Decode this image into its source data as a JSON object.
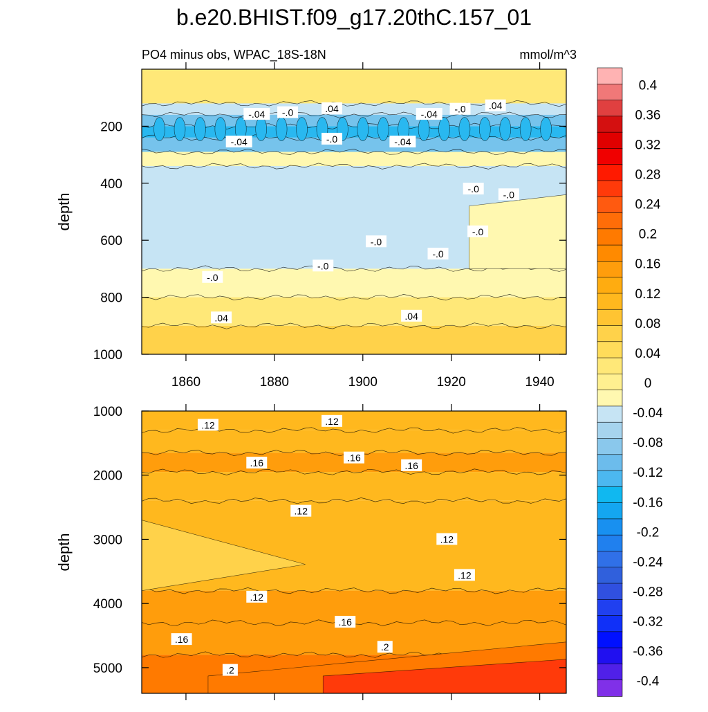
{
  "chart_data": {
    "type": "contour",
    "title": "b.e20.BHIST.f09_g17.20thC.157_01",
    "subtitle_left": "PO4 minus obs, WPAC_18S-18N",
    "subtitle_right": "mmol/m^3",
    "xlabel": "",
    "xlim": [
      1850,
      1946
    ],
    "x_ticks": [
      1860,
      1880,
      1900,
      1920,
      1940
    ],
    "x_tick_labels": [
      "1860",
      "1880",
      "1900",
      "1920",
      "1940"
    ],
    "colors": {
      "deep_blue_core": "#29b8f0",
      "mid_blue": "#76c3ec",
      "light_blue": "#c6e4f4",
      "pale_yellow": "#fff8b0",
      "yellow": "#ffe878",
      "gold": "#ffd24a",
      "light_orange": "#ffb81e",
      "orange": "#ff9d0c",
      "dark_orange": "#ff7a00",
      "red_orange": "#ff3a0a"
    },
    "panels": [
      {
        "name": "upper",
        "ylabel": "depth",
        "ylim": [
          1000,
          0
        ],
        "y_ticks": [
          200,
          400,
          600,
          800,
          1000
        ],
        "y_tick_labels": [
          "200",
          "400",
          "600",
          "800",
          "1000"
        ],
        "bands": [
          {
            "from": 0,
            "to": 120,
            "level": 0.02
          },
          {
            "from": 120,
            "to": 160,
            "level": -0.02
          },
          {
            "from": 160,
            "to": 200,
            "level": -0.06
          },
          {
            "from": 200,
            "to": 240,
            "level": -0.08
          },
          {
            "from": 240,
            "to": 290,
            "level": -0.04
          },
          {
            "from": 290,
            "to": 340,
            "level": 0.01
          },
          {
            "from": 340,
            "to": 700,
            "level": -0.02
          },
          {
            "from": 700,
            "to": 800,
            "level": 0.01
          },
          {
            "from": 800,
            "to": 900,
            "level": 0.03
          },
          {
            "from": 900,
            "to": 1000,
            "level": 0.05
          }
        ],
        "contour_labels": [
          {
            "text": "-.04",
            "x": 1876,
            "y": 158
          },
          {
            "text": "-.0",
            "x": 1883,
            "y": 152
          },
          {
            "text": ".04",
            "x": 1893,
            "y": 138
          },
          {
            "text": "-.04",
            "x": 1915,
            "y": 158
          },
          {
            "text": "-.0",
            "x": 1922,
            "y": 140
          },
          {
            "text": ".04",
            "x": 1930,
            "y": 128
          },
          {
            "text": "-.04",
            "x": 1872,
            "y": 255
          },
          {
            "text": "-.0",
            "x": 1893,
            "y": 245
          },
          {
            "text": "-.04",
            "x": 1909,
            "y": 255
          },
          {
            "text": "-.0",
            "x": 1925,
            "y": 420
          },
          {
            "text": "-.0",
            "x": 1933,
            "y": 440
          },
          {
            "text": "-.0",
            "x": 1926,
            "y": 570
          },
          {
            "text": "-.0",
            "x": 1903,
            "y": 605
          },
          {
            "text": "-.0",
            "x": 1917,
            "y": 648
          },
          {
            "text": "-.0",
            "x": 1866,
            "y": 730
          },
          {
            "text": "-.0",
            "x": 1891,
            "y": 690
          },
          {
            "text": ".04",
            "x": 1868,
            "y": 872
          },
          {
            "text": ".04",
            "x": 1911,
            "y": 866
          }
        ]
      },
      {
        "name": "lower",
        "ylabel": "depth",
        "ylim": [
          5400,
          1000
        ],
        "y_ticks": [
          1000,
          2000,
          3000,
          4000,
          5000
        ],
        "y_tick_labels": [
          "1000",
          "2000",
          "3000",
          "4000",
          "5000"
        ],
        "bands": [
          {
            "from": 1000,
            "to": 1300,
            "level": 0.11
          },
          {
            "from": 1300,
            "to": 1650,
            "level": 0.14
          },
          {
            "from": 1650,
            "to": 1950,
            "level": 0.17
          },
          {
            "from": 1950,
            "to": 2400,
            "level": 0.14
          },
          {
            "from": 2400,
            "to": 3800,
            "level": 0.13
          },
          {
            "from": 3800,
            "to": 4300,
            "level": 0.15
          },
          {
            "from": 4300,
            "to": 4800,
            "level": 0.17
          },
          {
            "from": 4800,
            "to": 5400,
            "level": 0.19
          }
        ],
        "contour_labels": [
          {
            "text": ".12",
            "x": 1865,
            "y": 1220
          },
          {
            "text": ".12",
            "x": 1893,
            "y": 1160
          },
          {
            "text": ".16",
            "x": 1876,
            "y": 1810
          },
          {
            "text": ".16",
            "x": 1898,
            "y": 1730
          },
          {
            "text": ".16",
            "x": 1911,
            "y": 1850
          },
          {
            "text": ".12",
            "x": 1886,
            "y": 2560
          },
          {
            "text": ".12",
            "x": 1919,
            "y": 3000
          },
          {
            "text": ".12",
            "x": 1923,
            "y": 3560
          },
          {
            "text": ".12",
            "x": 1876,
            "y": 3900
          },
          {
            "text": ".16",
            "x": 1896,
            "y": 4290
          },
          {
            "text": ".16",
            "x": 1859,
            "y": 4560
          },
          {
            "text": ".2",
            "x": 1905,
            "y": 4680
          },
          {
            "text": ".2",
            "x": 1870,
            "y": 5040
          }
        ]
      }
    ],
    "colorbar": {
      "labels": [
        "0.4",
        "0.36",
        "0.32",
        "0.28",
        "0.24",
        "0.2",
        "0.16",
        "0.12",
        "0.08",
        "0.04",
        "0",
        "-0.04",
        "-0.08",
        "-0.12",
        "-0.16",
        "-0.2",
        "-0.24",
        "-0.28",
        "-0.32",
        "-0.36",
        "-0.4"
      ],
      "colors": [
        "#ffb3b3",
        "#f07878",
        "#e04040",
        "#d41010",
        "#e00000",
        "#f00000",
        "#ff1a00",
        "#ff3a0a",
        "#ff5a10",
        "#ff6d08",
        "#ff7a00",
        "#ff8a00",
        "#ff9d0c",
        "#ffac10",
        "#ffb81e",
        "#ffc432",
        "#ffd24a",
        "#ffdc5a",
        "#ffe878",
        "#fff090",
        "#fff8b0",
        "#c6e4f4",
        "#a6d4ee",
        "#8ac8ec",
        "#6cbcec",
        "#4cb8f0",
        "#10b8f0",
        "#14a6f0",
        "#1890f0",
        "#2080ee",
        "#3070e8",
        "#3060dc",
        "#3050e0",
        "#2040f0",
        "#1030f8",
        "#0010ff",
        "#2010f0",
        "#5020e8",
        "#8030e8"
      ]
    }
  }
}
